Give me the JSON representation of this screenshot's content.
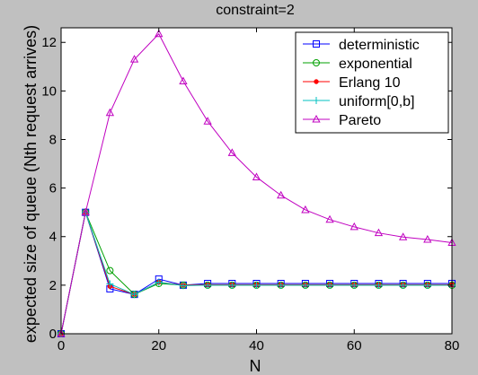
{
  "chart_data": {
    "type": "line",
    "title": "constraint=2",
    "xlabel": "N",
    "ylabel": "expected size of queue (Nth request arrives)",
    "xlim": [
      0,
      80
    ],
    "ylim": [
      0,
      12.6
    ],
    "xticks": [
      "0",
      "20",
      "40",
      "60",
      "80"
    ],
    "yticks": [
      "0",
      "2",
      "4",
      "6",
      "8",
      "10",
      "12"
    ],
    "grid": false,
    "legend_position": "top-right",
    "background_color": "#c0c0c0",
    "plot_area_color": "#ffffff",
    "series": [
      {
        "name": "deterministic",
        "color": "#0000ff",
        "marker": "square",
        "x": [
          0,
          5,
          10,
          15,
          20,
          25,
          30,
          35,
          40,
          45,
          50,
          55,
          60,
          65,
          70,
          75,
          80
        ],
        "y": [
          0,
          5.0,
          1.85,
          1.62,
          2.25,
          2.0,
          2.07,
          2.07,
          2.07,
          2.07,
          2.07,
          2.07,
          2.07,
          2.07,
          2.07,
          2.07,
          2.07
        ]
      },
      {
        "name": "exponential",
        "color": "#00a000",
        "marker": "circle",
        "x": [
          0,
          5,
          10,
          15,
          20,
          25,
          30,
          35,
          40,
          45,
          50,
          55,
          60,
          65,
          70,
          75,
          80
        ],
        "y": [
          0,
          5.0,
          2.6,
          1.62,
          2.07,
          2.0,
          2.0,
          2.0,
          2.0,
          2.0,
          2.0,
          2.0,
          2.0,
          2.0,
          2.0,
          2.0,
          2.0
        ]
      },
      {
        "name": "Erlang 10",
        "color": "#ff0000",
        "marker": "dot",
        "x": [
          0,
          5,
          10,
          15,
          20,
          25,
          30,
          35,
          40,
          45,
          50,
          55,
          60,
          65,
          70,
          75,
          80
        ],
        "y": [
          0,
          5.0,
          1.95,
          1.62,
          2.12,
          2.0,
          2.02,
          2.02,
          2.02,
          2.02,
          2.02,
          2.02,
          2.02,
          2.02,
          2.02,
          2.02,
          2.02
        ]
      },
      {
        "name": "uniform[0,b]",
        "color": "#00c0c0",
        "marker": "plus",
        "x": [
          0,
          5,
          10,
          15,
          20,
          25,
          30,
          35,
          40,
          45,
          50,
          55,
          60,
          65,
          70,
          75,
          80
        ],
        "y": [
          0,
          5.0,
          2.05,
          1.62,
          2.12,
          1.98,
          2.0,
          2.0,
          2.0,
          2.0,
          2.0,
          2.0,
          2.0,
          2.0,
          2.0,
          2.0,
          2.0
        ]
      },
      {
        "name": "Pareto",
        "color": "#c000c0",
        "marker": "triangle",
        "x": [
          0,
          5,
          10,
          15,
          20,
          25,
          30,
          35,
          40,
          45,
          50,
          55,
          60,
          65,
          70,
          75,
          80
        ],
        "y": [
          0,
          5.0,
          9.1,
          11.3,
          12.35,
          10.4,
          8.75,
          7.45,
          6.45,
          5.7,
          5.1,
          4.7,
          4.4,
          4.15,
          3.98,
          3.88,
          3.75
        ]
      }
    ]
  }
}
